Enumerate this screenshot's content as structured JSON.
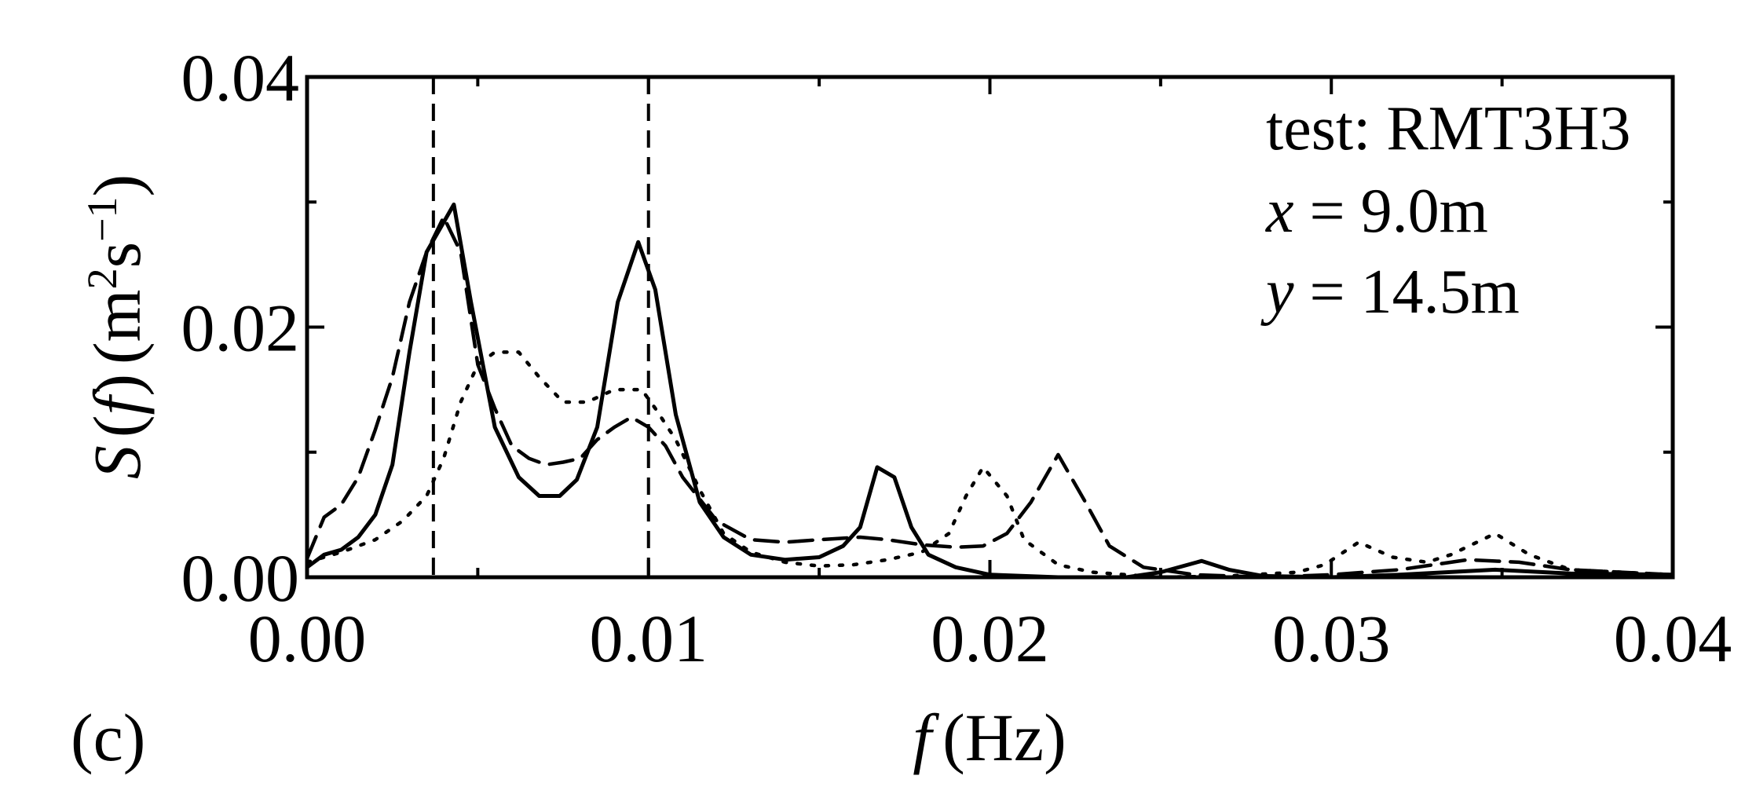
{
  "chart_data": {
    "type": "line",
    "panel_label": "(c)",
    "xlabel": {
      "symbol": "f",
      "unit": "(Hz)"
    },
    "ylabel": {
      "symbol": "S",
      "arg_open": "(",
      "arg": "f",
      "arg_close": ")",
      "unit_open": "(m",
      "unit_sq": "2",
      "unit_s": "s",
      "unit_exp": "−1",
      "unit_close": ")"
    },
    "xlim": [
      0,
      0.04
    ],
    "ylim": [
      0,
      0.04
    ],
    "xticks": [
      {
        "value": 0.0,
        "label": "0.00"
      },
      {
        "value": 0.01,
        "label": "0.01"
      },
      {
        "value": 0.02,
        "label": "0.02"
      },
      {
        "value": 0.03,
        "label": "0.03"
      },
      {
        "value": 0.04,
        "label": "0.04"
      }
    ],
    "yticks": [
      {
        "value": 0.0,
        "label": "0.00"
      },
      {
        "value": 0.02,
        "label": "0.02"
      },
      {
        "value": 0.04,
        "label": "0.04"
      }
    ],
    "x_minor_ticks": [
      0.005,
      0.015,
      0.025,
      0.035
    ],
    "y_minor_ticks": [
      0.01,
      0.03
    ],
    "vertical_reference_lines": [
      0.0037,
      0.01
    ],
    "annotations": {
      "test_line": "test: RMT3H3",
      "x_var": "x",
      "x_value": " = 9.0m",
      "y_var": "y",
      "y_value": " = 14.5m"
    },
    "series": [
      {
        "style": "solid",
        "points": [
          [
            0.0,
            0.0008
          ],
          [
            0.0005,
            0.0018
          ],
          [
            0.001,
            0.0022
          ],
          [
            0.0015,
            0.0032
          ],
          [
            0.002,
            0.005
          ],
          [
            0.0025,
            0.009
          ],
          [
            0.003,
            0.018
          ],
          [
            0.0035,
            0.026
          ],
          [
            0.0043,
            0.0298
          ],
          [
            0.0048,
            0.022
          ],
          [
            0.0055,
            0.012
          ],
          [
            0.0062,
            0.008
          ],
          [
            0.0068,
            0.0065
          ],
          [
            0.0074,
            0.0065
          ],
          [
            0.0079,
            0.0078
          ],
          [
            0.0085,
            0.012
          ],
          [
            0.0091,
            0.022
          ],
          [
            0.0097,
            0.0268
          ],
          [
            0.0102,
            0.023
          ],
          [
            0.0108,
            0.013
          ],
          [
            0.0115,
            0.006
          ],
          [
            0.0122,
            0.0032
          ],
          [
            0.013,
            0.0018
          ],
          [
            0.014,
            0.0014
          ],
          [
            0.015,
            0.0016
          ],
          [
            0.0157,
            0.0025
          ],
          [
            0.0162,
            0.004
          ],
          [
            0.0167,
            0.0088
          ],
          [
            0.0172,
            0.008
          ],
          [
            0.0177,
            0.004
          ],
          [
            0.0182,
            0.0018
          ],
          [
            0.019,
            0.0008
          ],
          [
            0.02,
            0.0002
          ],
          [
            0.022,
            0.0
          ],
          [
            0.024,
            0.0
          ],
          [
            0.025,
            0.0004
          ],
          [
            0.0262,
            0.0013
          ],
          [
            0.027,
            0.0006
          ],
          [
            0.028,
            0.0001
          ],
          [
            0.03,
            0.0
          ],
          [
            0.032,
            0.0002
          ],
          [
            0.0348,
            0.0006
          ],
          [
            0.037,
            0.0003
          ],
          [
            0.04,
            0.0002
          ]
        ]
      },
      {
        "style": "dashed",
        "points": [
          [
            0.0,
            0.0015
          ],
          [
            0.0005,
            0.0048
          ],
          [
            0.001,
            0.0058
          ],
          [
            0.0015,
            0.008
          ],
          [
            0.002,
            0.0118
          ],
          [
            0.0025,
            0.016
          ],
          [
            0.003,
            0.022
          ],
          [
            0.0035,
            0.026
          ],
          [
            0.004,
            0.0288
          ],
          [
            0.0045,
            0.026
          ],
          [
            0.005,
            0.017
          ],
          [
            0.0055,
            0.0135
          ],
          [
            0.006,
            0.0105
          ],
          [
            0.0065,
            0.0095
          ],
          [
            0.007,
            0.009
          ],
          [
            0.0075,
            0.0092
          ],
          [
            0.008,
            0.0095
          ],
          [
            0.0085,
            0.011
          ],
          [
            0.009,
            0.012
          ],
          [
            0.0095,
            0.0128
          ],
          [
            0.01,
            0.012
          ],
          [
            0.0105,
            0.0105
          ],
          [
            0.011,
            0.008
          ],
          [
            0.012,
            0.0045
          ],
          [
            0.013,
            0.003
          ],
          [
            0.014,
            0.0028
          ],
          [
            0.015,
            0.003
          ],
          [
            0.0162,
            0.0032
          ],
          [
            0.017,
            0.003
          ],
          [
            0.018,
            0.0026
          ],
          [
            0.019,
            0.0024
          ],
          [
            0.0198,
            0.0025
          ],
          [
            0.0205,
            0.0035
          ],
          [
            0.0212,
            0.006
          ],
          [
            0.022,
            0.0098
          ],
          [
            0.0228,
            0.006
          ],
          [
            0.0235,
            0.0025
          ],
          [
            0.0245,
            0.0008
          ],
          [
            0.026,
            0.0002
          ],
          [
            0.028,
            0.0
          ],
          [
            0.03,
            0.0002
          ],
          [
            0.032,
            0.0006
          ],
          [
            0.034,
            0.0014
          ],
          [
            0.0355,
            0.0012
          ],
          [
            0.037,
            0.0006
          ],
          [
            0.04,
            0.0002
          ]
        ]
      },
      {
        "style": "dotted",
        "points": [
          [
            0.0,
            0.0012
          ],
          [
            0.001,
            0.002
          ],
          [
            0.002,
            0.003
          ],
          [
            0.0028,
            0.0045
          ],
          [
            0.0035,
            0.0065
          ],
          [
            0.004,
            0.0095
          ],
          [
            0.0045,
            0.014
          ],
          [
            0.005,
            0.017
          ],
          [
            0.0055,
            0.018
          ],
          [
            0.0062,
            0.018
          ],
          [
            0.0068,
            0.016
          ],
          [
            0.0075,
            0.014
          ],
          [
            0.0082,
            0.014
          ],
          [
            0.009,
            0.015
          ],
          [
            0.0098,
            0.015
          ],
          [
            0.0102,
            0.0135
          ],
          [
            0.0108,
            0.011
          ],
          [
            0.0115,
            0.007
          ],
          [
            0.0122,
            0.0035
          ],
          [
            0.013,
            0.002
          ],
          [
            0.014,
            0.0012
          ],
          [
            0.015,
            0.0009
          ],
          [
            0.016,
            0.001
          ],
          [
            0.017,
            0.0014
          ],
          [
            0.018,
            0.002
          ],
          [
            0.0188,
            0.0035
          ],
          [
            0.0193,
            0.0065
          ],
          [
            0.0198,
            0.0088
          ],
          [
            0.0205,
            0.0065
          ],
          [
            0.021,
            0.003
          ],
          [
            0.022,
            0.001
          ],
          [
            0.023,
            0.0004
          ],
          [
            0.025,
            0.0
          ],
          [
            0.027,
            0.0001
          ],
          [
            0.029,
            0.0004
          ],
          [
            0.0298,
            0.001
          ],
          [
            0.0308,
            0.0028
          ],
          [
            0.0318,
            0.0016
          ],
          [
            0.0328,
            0.0012
          ],
          [
            0.0335,
            0.0018
          ],
          [
            0.0348,
            0.0035
          ],
          [
            0.0358,
            0.0018
          ],
          [
            0.037,
            0.0006
          ],
          [
            0.04,
            0.0002
          ]
        ]
      }
    ]
  }
}
